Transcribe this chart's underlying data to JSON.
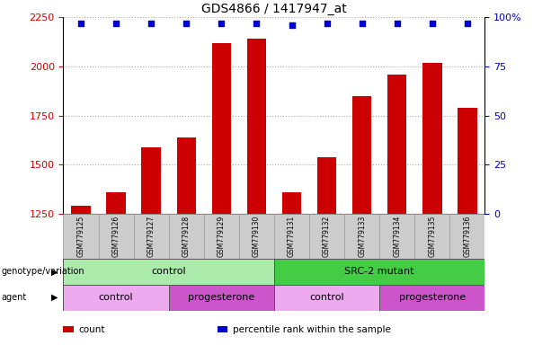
{
  "title": "GDS4866 / 1417947_at",
  "samples": [
    "GSM779125",
    "GSM779126",
    "GSM779127",
    "GSM779128",
    "GSM779129",
    "GSM779130",
    "GSM779131",
    "GSM779132",
    "GSM779133",
    "GSM779134",
    "GSM779135",
    "GSM779136"
  ],
  "counts": [
    1290,
    1360,
    1590,
    1640,
    2120,
    2140,
    1360,
    1540,
    1850,
    1960,
    2020,
    1790
  ],
  "percentile_ranks": [
    97,
    97,
    97,
    97,
    97,
    97,
    96,
    97,
    97,
    97,
    97,
    97
  ],
  "bar_color": "#cc0000",
  "dot_color": "#0000cc",
  "ylim_left": [
    1250,
    2250
  ],
  "ylim_right": [
    0,
    100
  ],
  "yticks_left": [
    1250,
    1500,
    1750,
    2000,
    2250
  ],
  "yticks_right": [
    0,
    25,
    50,
    75,
    100
  ],
  "yright_labels": [
    "0",
    "25",
    "50",
    "75",
    "100%"
  ],
  "genotype_groups": [
    {
      "label": "control",
      "start": 0,
      "end": 6,
      "color": "#aaeaaa"
    },
    {
      "label": "SRC-2 mutant",
      "start": 6,
      "end": 12,
      "color": "#44cc44"
    }
  ],
  "agent_groups": [
    {
      "label": "control",
      "start": 0,
      "end": 3,
      "color": "#eeaaee"
    },
    {
      "label": "progesterone",
      "start": 3,
      "end": 6,
      "color": "#cc55cc"
    },
    {
      "label": "control",
      "start": 6,
      "end": 9,
      "color": "#eeaaee"
    },
    {
      "label": "progesterone",
      "start": 9,
      "end": 12,
      "color": "#cc55cc"
    }
  ],
  "legend_items": [
    {
      "label": "count",
      "color": "#cc0000"
    },
    {
      "label": "percentile rank within the sample",
      "color": "#0000cc"
    }
  ],
  "background_color": "#ffffff",
  "grid_color": "#888888",
  "tick_label_color_left": "#cc0000",
  "tick_label_color_right": "#0000cc",
  "sample_bg_color": "#cccccc",
  "sample_border_color": "#999999"
}
